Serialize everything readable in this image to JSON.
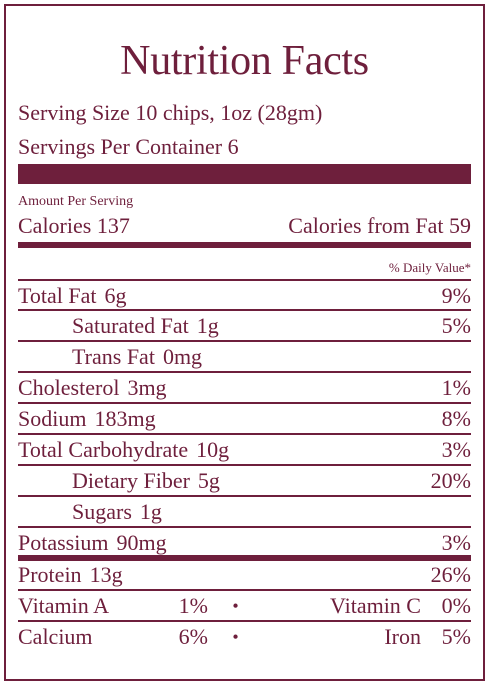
{
  "title": "Nutrition Facts",
  "serving_size": "Serving Size 10 chips, 1oz (28gm)",
  "servings_per_container": "Servings Per Container  6",
  "amount_per_serving": "Amount Per Serving",
  "calories": "Calories  137",
  "calories_from_fat": "Calories from Fat 59",
  "daily_value_header": "% Daily Value*",
  "nutrients": [
    {
      "name": "Total Fat",
      "amount": "6g",
      "dv": "9%"
    },
    {
      "name": "Saturated Fat",
      "amount": "1g",
      "dv": "5%"
    },
    {
      "name": "Trans Fat",
      "amount": "0mg",
      "dv": ""
    },
    {
      "name": "Cholesterol",
      "amount": "3mg",
      "dv": "1%"
    },
    {
      "name": "Sodium",
      "amount": "183mg",
      "dv": "8%"
    },
    {
      "name": "Total Carbohydrate",
      "amount": "10g",
      "dv": "3%"
    },
    {
      "name": "Dietary Fiber",
      "amount": "5g",
      "dv": "20%"
    },
    {
      "name": "Sugars",
      "amount": "1g",
      "dv": ""
    },
    {
      "name": "Potassium",
      "amount": "90mg",
      "dv": "3%"
    },
    {
      "name": "Protein",
      "amount": "13g",
      "dv": "26%"
    }
  ],
  "vitamins": [
    {
      "a_name": "Vitamin A",
      "a_pct": "1%",
      "bullet": "•",
      "b_name": "Vitamin C",
      "b_pct": "0%"
    },
    {
      "a_name": "Calcium",
      "a_pct": "6%",
      "bullet": "•",
      "b_name": "Iron",
      "b_pct": "5%"
    }
  ],
  "colors": {
    "accent": "#6e1f3c",
    "background": "#ffffff"
  }
}
